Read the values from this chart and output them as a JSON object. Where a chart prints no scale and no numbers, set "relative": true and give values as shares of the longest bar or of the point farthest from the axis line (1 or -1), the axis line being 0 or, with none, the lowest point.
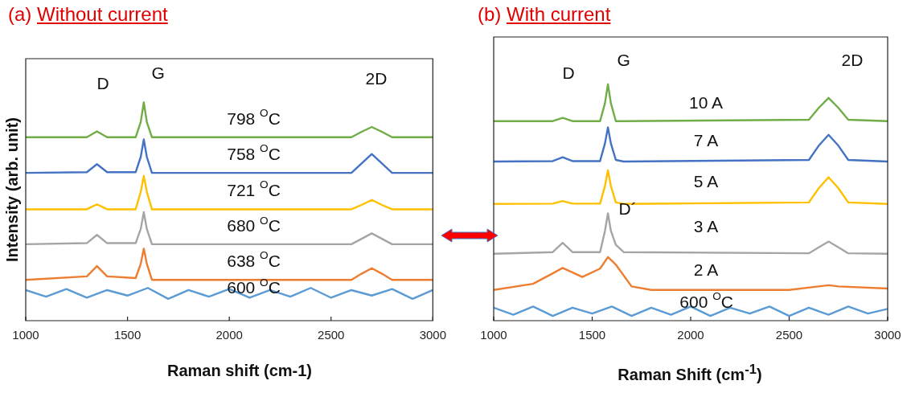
{
  "chart_data": [
    {
      "type": "line",
      "title": "(a) Without current",
      "xlabel": "Raman shift (cm-1)",
      "ylabel": "Intensity (arb. unit)",
      "relative": true,
      "xlim": [
        1000,
        3000
      ],
      "xticks": [
        1000,
        1500,
        2000,
        2500,
        3000
      ],
      "tick_labels": "x",
      "grid": false,
      "legend": false,
      "marker": "none",
      "line_style": "solid",
      "x": [
        1000,
        1300,
        1350,
        1400,
        1540,
        1565,
        1580,
        1595,
        1620,
        2600,
        2650,
        2700,
        2750,
        2800,
        3000
      ],
      "annotations": [
        "D",
        "G",
        "2D"
      ],
      "series": [
        {
          "name": "798 $^{O}$C",
          "color": "#70ad47",
          "values": [
            0.84,
            0.84,
            0.867,
            0.84,
            0.84,
            0.91,
            1.0,
            0.91,
            0.84,
            0.84,
            0.865,
            0.887,
            0.865,
            0.84,
            0.84
          ]
        },
        {
          "name": "758 $^{O}$C",
          "color": "#4472c4",
          "values": [
            0.677,
            0.68,
            0.717,
            0.68,
            0.68,
            0.75,
            0.83,
            0.75,
            0.677,
            0.677,
            0.72,
            0.763,
            0.72,
            0.677,
            0.677
          ]
        },
        {
          "name": "721 $^{O}$C",
          "color": "#ffc000",
          "values": [
            0.51,
            0.51,
            0.533,
            0.51,
            0.51,
            0.59,
            0.663,
            0.59,
            0.51,
            0.51,
            0.53,
            0.553,
            0.53,
            0.51,
            0.51
          ]
        },
        {
          "name": "680 $^{O}$C",
          "color": "#a5a5a5",
          "values": [
            0.35,
            0.355,
            0.393,
            0.355,
            0.355,
            0.42,
            0.497,
            0.42,
            0.35,
            0.35,
            0.375,
            0.4,
            0.375,
            0.35,
            0.35
          ]
        },
        {
          "name": "638 $^{O}$C",
          "color": "#ed7d31",
          "values": [
            0.187,
            0.203,
            0.25,
            0.203,
            0.195,
            0.26,
            0.33,
            0.26,
            0.187,
            0.187,
            0.215,
            0.24,
            0.215,
            0.187,
            0.187
          ]
        },
        {
          "name": "600 $^{O}$C",
          "color": "#5b9bd5",
          "x": [
            1000,
            1100,
            1200,
            1300,
            1400,
            1500,
            1600,
            1700,
            1800,
            1900,
            2000,
            2100,
            2200,
            2300,
            2400,
            2500,
            2600,
            2700,
            2800,
            2900,
            3000
          ],
          "values": [
            0.14,
            0.11,
            0.145,
            0.105,
            0.14,
            0.115,
            0.15,
            0.1,
            0.14,
            0.11,
            0.145,
            0.105,
            0.14,
            0.11,
            0.15,
            0.105,
            0.14,
            0.115,
            0.145,
            0.1,
            0.14
          ]
        }
      ]
    },
    {
      "type": "line",
      "title": "(b) With current",
      "xlabel": "Raman Shift (cm$^{-1}$)",
      "relative": true,
      "xlim": [
        1000,
        3000
      ],
      "xticks": [
        1000,
        1500,
        2000,
        2500,
        3000
      ],
      "tick_labels": "x",
      "grid": false,
      "legend": false,
      "marker": "none",
      "line_style": "solid",
      "x": [
        1000,
        1300,
        1350,
        1400,
        1540,
        1565,
        1580,
        1595,
        1620,
        1660,
        2600,
        2650,
        2700,
        2750,
        2800,
        3000
      ],
      "annotations": [
        "D",
        "G",
        "2D",
        "D´"
      ],
      "series": [
        {
          "name": "10 A",
          "color": "#70ad47",
          "values": [
            0.844,
            0.844,
            0.858,
            0.844,
            0.844,
            0.92,
            1.0,
            0.92,
            0.844,
            0.844,
            0.85,
            0.9,
            0.942,
            0.9,
            0.85,
            0.844
          ]
        },
        {
          "name": "7 A",
          "color": "#4472c4",
          "values": [
            0.673,
            0.675,
            0.691,
            0.675,
            0.675,
            0.75,
            0.818,
            0.75,
            0.68,
            0.673,
            0.68,
            0.74,
            0.786,
            0.74,
            0.68,
            0.673
          ]
        },
        {
          "name": "5 A",
          "color": "#ffc000",
          "values": [
            0.494,
            0.495,
            0.506,
            0.495,
            0.495,
            0.57,
            0.636,
            0.57,
            0.5,
            0.494,
            0.5,
            0.56,
            0.607,
            0.56,
            0.5,
            0.494
          ]
        },
        {
          "name": "3 A",
          "color": "#a5a5a5",
          "values": [
            0.283,
            0.29,
            0.329,
            0.29,
            0.29,
            0.38,
            0.454,
            0.38,
            0.321,
            0.29,
            0.285,
            0.31,
            0.335,
            0.31,
            0.285,
            0.283
          ]
        },
        {
          "name": "2 A",
          "color": "#ed7d31",
          "x": [
            1000,
            1200,
            1300,
            1350,
            1450,
            1540,
            1580,
            1620,
            1700,
            1800,
            2500,
            2650,
            2700,
            2750,
            3000
          ],
          "values": [
            0.13,
            0.156,
            0.2,
            0.223,
            0.185,
            0.22,
            0.269,
            0.237,
            0.145,
            0.13,
            0.13,
            0.145,
            0.15,
            0.145,
            0.136
          ]
        },
        {
          "name": "600 $^{O}$C",
          "color": "#5b9bd5",
          "x": [
            1000,
            1100,
            1200,
            1300,
            1400,
            1500,
            1600,
            1700,
            1800,
            1900,
            2000,
            2100,
            2200,
            2300,
            2400,
            2500,
            2600,
            2700,
            2800,
            2900,
            3000
          ],
          "values": [
            0.055,
            0.025,
            0.06,
            0.02,
            0.055,
            0.03,
            0.06,
            0.02,
            0.055,
            0.025,
            0.06,
            0.02,
            0.055,
            0.03,
            0.06,
            0.02,
            0.055,
            0.025,
            0.06,
            0.03,
            0.05
          ]
        }
      ]
    }
  ]
}
